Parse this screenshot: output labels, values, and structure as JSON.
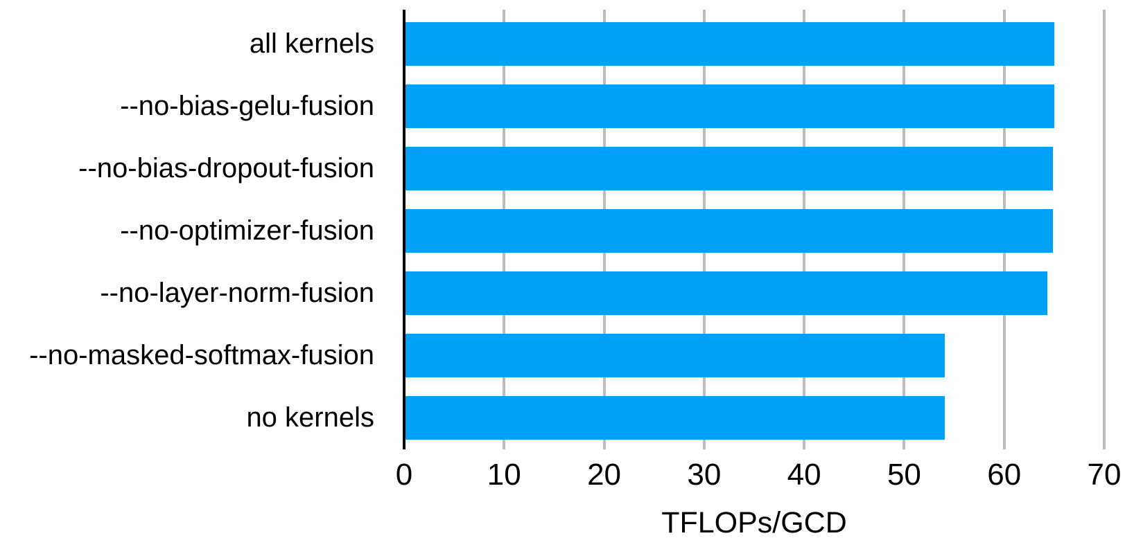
{
  "chart_data": {
    "type": "bar",
    "orientation": "horizontal",
    "title": "",
    "categories": [
      "all kernels",
      "--no-bias-gelu-fusion",
      "--no-bias-dropout-fusion",
      "--no-optimizer-fusion",
      "--no-layer-norm-fusion",
      "--no-masked-softmax-fusion",
      "no kernels"
    ],
    "values": [
      64.9,
      64.9,
      64.7,
      64.7,
      64.2,
      53.9,
      53.9
    ],
    "xlabel": "TFLOPs/GCD",
    "ylabel": "",
    "xlim": [
      0,
      70
    ],
    "xticks": [
      0,
      10,
      20,
      30,
      40,
      50,
      60,
      70
    ],
    "grid": true,
    "legend": "none",
    "bar_color": "#00a1f7",
    "gridline_color": "#bcbcbc",
    "axis_color": "#000000",
    "text_color": "#000000"
  }
}
